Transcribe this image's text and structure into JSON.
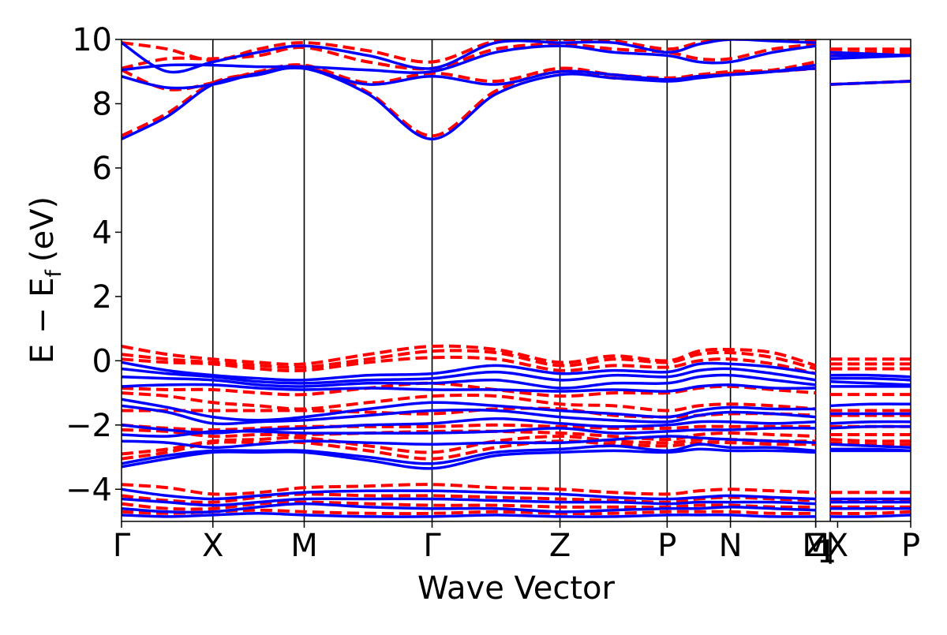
{
  "chart_data": {
    "type": "line",
    "title": "",
    "xlabel": "Wave Vector",
    "ylabel": "E − E",
    "ylabel_subscript": "f",
    "ylabel_unit": "(eV)",
    "ylim": [
      -5,
      10
    ],
    "yticks": [
      -4,
      -2,
      0,
      2,
      4,
      6,
      8,
      10
    ],
    "ytick_labels": [
      "−4",
      "−2",
      "0",
      "2",
      "4",
      "6",
      "8",
      "10"
    ],
    "xlim": [
      0,
      6.48
    ],
    "high_symmetry_points": [
      {
        "label": "Γ",
        "position": 0.0
      },
      {
        "label": "X",
        "position": 0.75
      },
      {
        "label": "M",
        "position": 1.5
      },
      {
        "label": "Γ",
        "position": 2.55
      },
      {
        "label": "Z",
        "position": 3.6
      },
      {
        "label": "P",
        "position": 4.48
      },
      {
        "label": "N",
        "position": 5.0
      },
      {
        "label": "M",
        "position": 5.7
      },
      {
        "label": "Z",
        "position": 5.7
      },
      {
        "label": "1",
        "position": 5.7,
        "subscript": true
      },
      {
        "label": "|",
        "position": 5.82
      },
      {
        "label": "X",
        "position": 5.88
      },
      {
        "label": "P",
        "position": 6.48
      }
    ],
    "vlines": [
      0.75,
      1.5,
      2.55,
      3.6,
      4.48,
      5.0,
      5.7,
      5.82
    ],
    "kpoints": [
      0.0,
      0.375,
      0.75,
      1.125,
      1.5,
      2.025,
      2.55,
      3.075,
      3.6,
      4.04,
      4.48,
      4.74,
      5.0,
      5.35,
      5.7,
      5.82,
      6.15,
      6.48
    ],
    "segment_breaks": [
      15
    ],
    "colors": {
      "solid": "#0000ff",
      "dashed": "#ff0000"
    },
    "series": [
      {
        "style": "solid",
        "values": [
          6.9,
          7.6,
          8.6,
          8.9,
          9.1,
          8.3,
          6.9,
          8.3,
          8.9,
          8.8,
          8.7,
          8.8,
          8.9,
          9.0,
          9.1,
          8.6,
          8.65,
          8.7
        ]
      },
      {
        "style": "solid",
        "values": [
          8.85,
          8.5,
          8.6,
          8.95,
          9.1,
          8.6,
          8.85,
          8.6,
          9.0,
          8.9,
          8.75,
          8.85,
          8.9,
          9.0,
          9.2,
          9.4,
          9.45,
          9.5
        ]
      },
      {
        "style": "solid",
        "values": [
          9.05,
          9.2,
          9.2,
          9.15,
          9.15,
          9.05,
          9.0,
          9.6,
          9.8,
          9.6,
          9.5,
          9.3,
          9.3,
          9.6,
          9.8,
          9.5,
          9.5,
          9.5
        ]
      },
      {
        "style": "solid",
        "values": [
          9.9,
          9.0,
          9.3,
          9.6,
          9.8,
          9.5,
          9.1,
          9.9,
          9.9,
          9.9,
          9.6,
          9.85,
          10.0,
          9.95,
          9.9,
          9.6,
          9.55,
          9.5
        ]
      },
      {
        "style": "dashed",
        "values": [
          7.0,
          7.7,
          8.65,
          8.95,
          9.15,
          8.35,
          7.0,
          8.4,
          9.0,
          8.8,
          8.75,
          8.85,
          8.95,
          9.0,
          9.1,
          8.6,
          8.65,
          8.7
        ]
      },
      {
        "style": "dashed",
        "values": [
          9.05,
          8.45,
          8.65,
          9.0,
          9.2,
          8.65,
          8.95,
          8.7,
          9.1,
          8.9,
          8.8,
          8.9,
          9.0,
          9.05,
          9.3,
          9.5,
          9.55,
          9.55
        ]
      },
      {
        "style": "dashed",
        "values": [
          9.1,
          9.4,
          9.4,
          9.5,
          9.75,
          9.3,
          9.1,
          9.7,
          9.85,
          9.7,
          9.6,
          9.4,
          9.4,
          9.7,
          9.85,
          9.6,
          9.6,
          9.65
        ]
      },
      {
        "style": "dashed",
        "values": [
          9.9,
          9.7,
          9.35,
          9.7,
          9.9,
          9.65,
          9.3,
          9.95,
          10.0,
          9.95,
          9.7,
          9.9,
          10.0,
          10.0,
          9.95,
          9.7,
          9.7,
          9.7
        ]
      },
      {
        "style": "solid",
        "values": [
          -0.05,
          -0.3,
          -0.45,
          -0.55,
          -0.6,
          -0.45,
          -0.4,
          -0.15,
          -0.4,
          -0.3,
          -0.35,
          -0.1,
          -0.1,
          -0.2,
          -0.4,
          -0.45,
          -0.45,
          -0.5
        ]
      },
      {
        "style": "solid",
        "values": [
          -0.25,
          -0.4,
          -0.5,
          -0.65,
          -0.7,
          -0.6,
          -0.55,
          -0.35,
          -0.6,
          -0.45,
          -0.5,
          -0.3,
          -0.25,
          -0.4,
          -0.6,
          -0.55,
          -0.55,
          -0.6
        ]
      },
      {
        "style": "solid",
        "values": [
          -0.5,
          -0.55,
          -0.6,
          -0.75,
          -0.8,
          -0.7,
          -0.7,
          -0.6,
          -0.85,
          -0.7,
          -0.7,
          -0.5,
          -0.45,
          -0.6,
          -0.75,
          -0.65,
          -0.7,
          -0.75
        ]
      },
      {
        "style": "solid",
        "values": [
          -0.8,
          -0.75,
          -0.75,
          -0.85,
          -0.9,
          -0.85,
          -0.9,
          -0.9,
          -0.95,
          -0.9,
          -0.95,
          -0.8,
          -0.75,
          -0.85,
          -0.85,
          -0.8,
          -0.8,
          -0.8
        ]
      },
      {
        "style": "solid",
        "values": [
          -1.2,
          -1.45,
          -1.75,
          -1.85,
          -1.75,
          -1.5,
          -1.3,
          -1.4,
          -1.55,
          -1.65,
          -1.75,
          -1.55,
          -1.45,
          -1.5,
          -1.5,
          -1.4,
          -1.35,
          -1.35
        ]
      },
      {
        "style": "solid",
        "values": [
          -1.4,
          -1.6,
          -1.95,
          -1.9,
          -1.85,
          -1.7,
          -1.55,
          -1.55,
          -1.75,
          -1.85,
          -1.9,
          -1.7,
          -1.6,
          -1.65,
          -1.75,
          -1.65,
          -1.65,
          -1.65
        ]
      },
      {
        "style": "solid",
        "values": [
          -2.0,
          -2.15,
          -2.25,
          -2.15,
          -2.1,
          -2.0,
          -1.95,
          -1.8,
          -1.95,
          -2.05,
          -2.0,
          -1.9,
          -1.9,
          -1.95,
          -1.9,
          -1.95,
          -1.9,
          -1.9
        ]
      },
      {
        "style": "solid",
        "values": [
          -2.3,
          -2.35,
          -2.2,
          -2.2,
          -2.25,
          -2.25,
          -2.25,
          -2.2,
          -2.1,
          -2.25,
          -2.2,
          -2.15,
          -2.15,
          -2.1,
          -2.1,
          -2.1,
          -2.05,
          -2.05
        ]
      },
      {
        "style": "solid",
        "values": [
          -2.5,
          -2.55,
          -2.7,
          -2.6,
          -2.5,
          -2.55,
          -2.6,
          -2.55,
          -2.55,
          -2.45,
          -2.35,
          -2.4,
          -2.45,
          -2.5,
          -2.55,
          -2.6,
          -2.65,
          -2.7
        ]
      },
      {
        "style": "solid",
        "values": [
          -3.2,
          -2.95,
          -2.8,
          -2.8,
          -2.8,
          -3.0,
          -3.2,
          -2.85,
          -2.75,
          -2.65,
          -2.8,
          -2.6,
          -2.7,
          -2.7,
          -2.8,
          -2.75,
          -2.75,
          -2.8
        ]
      },
      {
        "style": "solid",
        "values": [
          -3.3,
          -3.05,
          -2.85,
          -2.85,
          -2.85,
          -3.1,
          -3.35,
          -2.95,
          -2.85,
          -2.8,
          -2.85,
          -2.75,
          -2.8,
          -2.8,
          -2.85,
          -2.8,
          -2.8,
          -2.8
        ]
      },
      {
        "style": "dashed",
        "values": [
          0.45,
          0.2,
          0.05,
          -0.05,
          -0.1,
          0.2,
          0.45,
          0.35,
          -0.05,
          0.15,
          0.0,
          0.3,
          0.35,
          0.25,
          -0.15,
          0.05,
          0.05,
          0.05
        ]
      },
      {
        "style": "dashed",
        "values": [
          0.2,
          0.05,
          -0.05,
          -0.15,
          -0.2,
          0.05,
          0.3,
          0.25,
          -0.15,
          0.05,
          -0.05,
          0.2,
          0.25,
          0.1,
          -0.25,
          -0.1,
          -0.1,
          -0.1
        ]
      },
      {
        "style": "dashed",
        "values": [
          0.05,
          -0.05,
          -0.1,
          -0.25,
          -0.3,
          -0.05,
          0.1,
          0.05,
          -0.3,
          -0.15,
          -0.2,
          0.0,
          0.05,
          -0.1,
          -0.4,
          -0.25,
          -0.25,
          -0.25
        ]
      },
      {
        "style": "dashed",
        "values": [
          -0.85,
          -0.9,
          -0.9,
          -1.0,
          -1.05,
          -0.85,
          -0.7,
          -0.9,
          -1.1,
          -1.0,
          -1.0,
          -0.85,
          -0.8,
          -0.9,
          -1.0,
          -1.05,
          -1.05,
          -1.05
        ]
      },
      {
        "style": "dashed",
        "values": [
          -1.0,
          -1.1,
          -1.3,
          -1.4,
          -1.5,
          -1.3,
          -1.1,
          -1.1,
          -1.35,
          -1.4,
          -1.55,
          -1.4,
          -1.35,
          -1.4,
          -1.5,
          -1.55,
          -1.55,
          -1.55
        ]
      },
      {
        "style": "dashed",
        "values": [
          -1.55,
          -1.55,
          -1.55,
          -1.55,
          -1.55,
          -1.6,
          -1.65,
          -1.5,
          -1.5,
          -1.7,
          -1.75,
          -1.7,
          -1.65,
          -1.65,
          -1.7,
          -1.7,
          -1.7,
          -1.7
        ]
      },
      {
        "style": "dashed",
        "values": [
          -2.0,
          -2.1,
          -2.15,
          -2.1,
          -2.05,
          -2.05,
          -2.05,
          -2.0,
          -2.05,
          -2.1,
          -2.1,
          -2.05,
          -2.05,
          -2.05,
          -2.05,
          -2.05,
          -2.05,
          -2.05
        ]
      },
      {
        "style": "dashed",
        "values": [
          -2.15,
          -2.2,
          -2.35,
          -2.3,
          -2.3,
          -2.25,
          -2.2,
          -2.2,
          -2.25,
          -2.35,
          -2.45,
          -2.3,
          -2.25,
          -2.3,
          -2.35,
          -2.3,
          -2.3,
          -2.3
        ]
      },
      {
        "style": "dashed",
        "values": [
          -2.9,
          -2.75,
          -2.5,
          -2.45,
          -2.4,
          -2.65,
          -2.85,
          -2.5,
          -2.35,
          -2.5,
          -2.55,
          -2.45,
          -2.45,
          -2.5,
          -2.5,
          -2.45,
          -2.5,
          -2.5
        ]
      },
      {
        "style": "dashed",
        "values": [
          -3.05,
          -2.85,
          -2.55,
          -2.55,
          -2.55,
          -2.8,
          -3.05,
          -2.7,
          -2.5,
          -2.6,
          -2.65,
          -2.55,
          -2.55,
          -2.6,
          -2.6,
          -2.55,
          -2.6,
          -2.6
        ]
      },
      {
        "style": "solid",
        "values": [
          -4.0,
          -4.2,
          -4.3,
          -4.2,
          -4.1,
          -4.05,
          -4.05,
          -4.1,
          -4.15,
          -4.25,
          -4.3,
          -4.25,
          -4.2,
          -4.25,
          -4.3,
          -4.3,
          -4.3,
          -4.3
        ]
      },
      {
        "style": "solid",
        "values": [
          -4.3,
          -4.4,
          -4.5,
          -4.4,
          -4.3,
          -4.3,
          -4.3,
          -4.35,
          -4.4,
          -4.4,
          -4.45,
          -4.4,
          -4.4,
          -4.4,
          -4.45,
          -4.4,
          -4.4,
          -4.4
        ]
      },
      {
        "style": "solid",
        "values": [
          -4.6,
          -4.7,
          -4.7,
          -4.55,
          -4.45,
          -4.55,
          -4.6,
          -4.6,
          -4.7,
          -4.65,
          -4.6,
          -4.6,
          -4.55,
          -4.6,
          -4.65,
          -4.6,
          -4.6,
          -4.6
        ]
      },
      {
        "style": "solid",
        "values": [
          -4.8,
          -4.85,
          -4.8,
          -4.75,
          -4.8,
          -4.85,
          -4.85,
          -4.8,
          -4.85,
          -4.85,
          -4.8,
          -4.8,
          -4.8,
          -4.85,
          -4.85,
          -4.85,
          -4.85,
          -4.8
        ]
      },
      {
        "style": "dashed",
        "values": [
          -3.85,
          -3.95,
          -4.15,
          -4.1,
          -3.95,
          -3.9,
          -3.85,
          -3.95,
          -4.0,
          -4.1,
          -4.15,
          -4.05,
          -4.0,
          -4.05,
          -4.1,
          -4.1,
          -4.1,
          -4.1
        ]
      },
      {
        "style": "dashed",
        "values": [
          -4.2,
          -4.35,
          -4.4,
          -4.25,
          -4.15,
          -4.2,
          -4.2,
          -4.25,
          -4.3,
          -4.35,
          -4.4,
          -4.3,
          -4.25,
          -4.3,
          -4.35,
          -4.35,
          -4.35,
          -4.35
        ]
      },
      {
        "style": "dashed",
        "values": [
          -4.45,
          -4.6,
          -4.6,
          -4.45,
          -4.4,
          -4.45,
          -4.5,
          -4.5,
          -4.55,
          -4.55,
          -4.55,
          -4.5,
          -4.5,
          -4.55,
          -4.55,
          -4.55,
          -4.55,
          -4.55
        ]
      },
      {
        "style": "dashed",
        "values": [
          -4.7,
          -4.75,
          -4.7,
          -4.65,
          -4.7,
          -4.75,
          -4.75,
          -4.7,
          -4.75,
          -4.75,
          -4.7,
          -4.7,
          -4.7,
          -4.75,
          -4.75,
          -4.75,
          -4.75,
          -4.7
        ]
      }
    ]
  }
}
